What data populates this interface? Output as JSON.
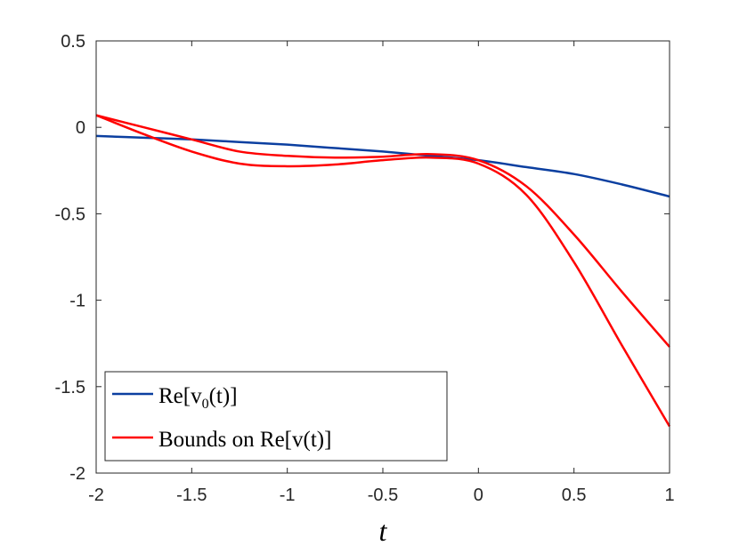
{
  "chart_data": {
    "type": "line",
    "xlabel": "t",
    "ylabel": "",
    "title": "",
    "xlim": [
      -2,
      1
    ],
    "ylim": [
      -2,
      0.5
    ],
    "xticks": [
      "-2",
      "-1.5",
      "-1",
      "-0.5",
      "0",
      "0.5",
      "1"
    ],
    "yticks": [
      "-2",
      "-1.5",
      "-1",
      "-0.5",
      "0",
      "0.5"
    ],
    "grid": false,
    "legend_position": "bottom-left",
    "series": [
      {
        "name": "Re[v0(t)]",
        "legend_main": "Re[v",
        "legend_sub": "0",
        "legend_tail": "(t)]",
        "color": "#0b3fa0",
        "x": [
          -2,
          -1.75,
          -1.5,
          -1.25,
          -1,
          -0.75,
          -0.5,
          -0.25,
          0,
          0.25,
          0.5,
          0.75,
          1
        ],
        "y": [
          -0.05,
          -0.06,
          -0.07,
          -0.085,
          -0.1,
          -0.12,
          -0.14,
          -0.165,
          -0.19,
          -0.23,
          -0.27,
          -0.33,
          -0.4
        ]
      },
      {
        "name": "Bounds on Re[v(t)]",
        "legend_text": "Bounds on Re[v(t)]",
        "color": "#ff0000",
        "x": [
          -2,
          -1.75,
          -1.5,
          -1.25,
          -1,
          -0.75,
          -0.5,
          -0.25,
          0,
          0.25,
          0.5,
          0.75,
          1
        ],
        "y": [
          0.07,
          0.0,
          -0.07,
          -0.14,
          -0.165,
          -0.175,
          -0.17,
          -0.155,
          -0.19,
          -0.34,
          -0.62,
          -0.95,
          -1.27
        ]
      },
      {
        "name": "",
        "color": "#ff0000",
        "x": [
          -2,
          -1.75,
          -1.5,
          -1.25,
          -1,
          -0.75,
          -0.5,
          -0.25,
          0,
          0.25,
          0.5,
          0.75,
          1
        ],
        "y": [
          0.07,
          -0.04,
          -0.14,
          -0.21,
          -0.225,
          -0.215,
          -0.19,
          -0.175,
          -0.21,
          -0.39,
          -0.78,
          -1.26,
          -1.73
        ]
      }
    ]
  }
}
